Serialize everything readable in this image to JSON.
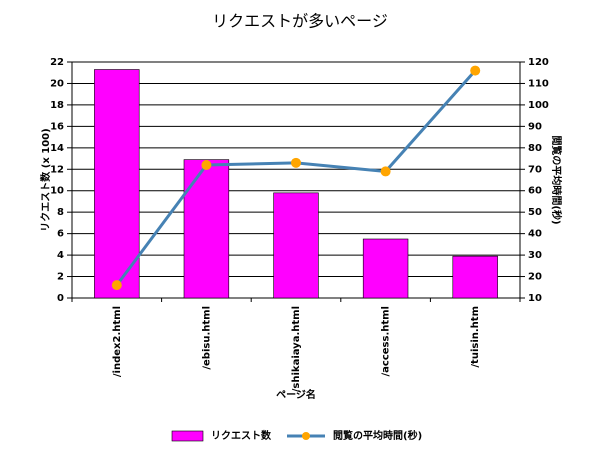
{
  "chart_data": {
    "type": "bar-line",
    "title": "リクエストが多いページ",
    "x_label": "ページ名",
    "y_label": "リクエスト数 (x 100)",
    "y2_label": "閲覧の平均時間(秒)",
    "categories": [
      "/index2.html",
      "/ebisu.html",
      "/shikaiaya.html",
      "/access.html",
      "/tuisin.htm"
    ],
    "series": [
      {
        "name": "リクエスト数",
        "type": "bar",
        "color": "#ff00ff",
        "values": [
          21.3,
          12.9,
          9.8,
          5.5,
          3.9
        ]
      },
      {
        "name": "閲覧の平均時間(秒)",
        "type": "line",
        "color": "#4682b4",
        "marker_color": "#ffa500",
        "axis": "y2",
        "values": [
          16,
          72,
          73,
          69,
          116
        ]
      }
    ],
    "ylim": [
      0,
      22
    ],
    "yticks": [
      0,
      2,
      4,
      6,
      8,
      10,
      12,
      14,
      16,
      18,
      20,
      22
    ],
    "y2lim": [
      10,
      120
    ],
    "y2ticks": [
      10,
      20,
      30,
      40,
      50,
      60,
      70,
      80,
      90,
      100,
      110,
      120
    ],
    "grid": true,
    "legend": "bottom"
  }
}
